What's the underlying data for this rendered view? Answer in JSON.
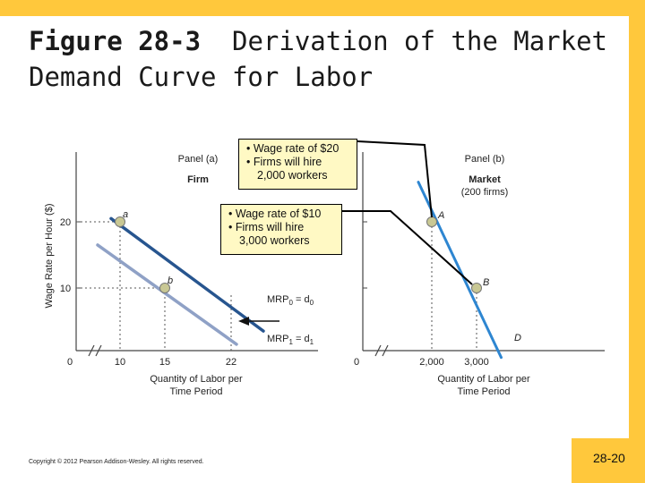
{
  "slide": {
    "title_bold": "Figure 28-3",
    "title_rest": "Derivation of the Market Demand Curve for Labor",
    "copyright": "Copyright © 2012 Pearson Addison-Wesley. All rights reserved.",
    "page_number": "28-20"
  },
  "callouts": {
    "wage20": {
      "line1": "Wage rate of $20",
      "line2": "Firms will hire",
      "line3": "2,000 workers"
    },
    "wage10": {
      "line1": "Wage rate of $10",
      "line2": "Firms will hire",
      "line3": "3,000 workers"
    }
  },
  "colors": {
    "dark_curve": "#27558f",
    "light_curve": "#8fa1c6",
    "market_curve": "#2e86d1",
    "point_fill": "#c9c894",
    "accent": "#ffc83c"
  },
  "chart_data": [
    {
      "type": "line",
      "panel": "Panel (a)",
      "subtitle": "Firm",
      "xlabel": "Quantity of Labor per Time Period",
      "ylabel": "Wage Rate per Hour ($)",
      "x_ticks": [
        "0",
        "10",
        "15",
        "22"
      ],
      "y_ticks": [
        "10",
        "20"
      ],
      "series": [
        {
          "label_main": "MRP",
          "label_sub": "0",
          "label_eq": " = d",
          "label_sub2": "0",
          "x": [
            9,
            26
          ],
          "y": [
            20.5,
            3.5
          ]
        },
        {
          "label_main": "MRP",
          "label_sub": "1",
          "label_eq": " = d",
          "label_sub2": "1",
          "x": [
            7.5,
            23
          ],
          "y": [
            16.5,
            1.5
          ]
        }
      ],
      "points": [
        {
          "label": "a",
          "x": 10,
          "y": 20
        },
        {
          "label": "b",
          "x": 15,
          "y": 10
        }
      ],
      "arrow": {
        "from_x": 26,
        "to_x": 22,
        "y": 5
      }
    },
    {
      "type": "line",
      "panel": "Panel (b)",
      "subtitle": "Market",
      "subtitle2": "(200 firms)",
      "xlabel": "Quantity of Labor per Time Period",
      "x_ticks": [
        "0",
        "2,000",
        "3,000"
      ],
      "series": [
        {
          "label": "D",
          "x": [
            1700,
            3550
          ],
          "y": [
            26,
            -0.5
          ]
        }
      ],
      "points": [
        {
          "label": "A",
          "x": 2000,
          "y": 20
        },
        {
          "label": "B",
          "x": 3000,
          "y": 10
        }
      ]
    }
  ]
}
